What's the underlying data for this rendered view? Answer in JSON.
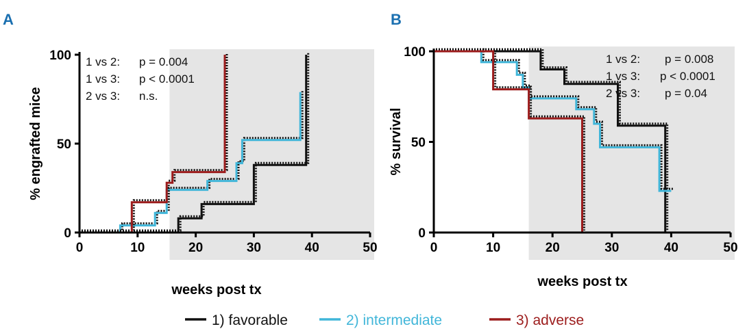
{
  "legend": [
    {
      "label": "1) favorable",
      "color": "#111111"
    },
    {
      "label": "2) intermediate",
      "color": "#41b6d9"
    },
    {
      "label": "3) adverse",
      "color": "#9c1c1c"
    }
  ],
  "chart_data": [
    {
      "panel": "A",
      "type": "line",
      "step": true,
      "ylabel": "% engrafted mice",
      "xlabel": "weeks post tx",
      "xlim": [
        0,
        50
      ],
      "ylim": [
        0,
        100
      ],
      "xticks": [
        0,
        10,
        20,
        30,
        40,
        50
      ],
      "yticks": [
        0,
        50,
        100
      ],
      "shaded_x_range": [
        15.5,
        50
      ],
      "annotations": [
        {
          "label": "1 vs 2:",
          "value": "p = 0.004"
        },
        {
          "label": "1 vs 3:",
          "value": "p < 0.0001"
        },
        {
          "label": "2 vs 3:",
          "value": "n.s."
        }
      ],
      "series": [
        {
          "name": "1) favorable",
          "x": [
            0,
            17,
            17,
            21,
            21,
            30,
            30,
            39,
            39
          ],
          "y": [
            0,
            0,
            8,
            8,
            16,
            16,
            38,
            38,
            100
          ]
        },
        {
          "name": "2) intermediate",
          "x": [
            0,
            7,
            7,
            13,
            13,
            15,
            15,
            22,
            22,
            27,
            27,
            28,
            28,
            38,
            38
          ],
          "y": [
            0,
            0,
            4,
            4,
            11,
            11,
            24,
            24,
            29,
            29,
            39,
            39,
            52,
            52,
            79
          ]
        },
        {
          "name": "3) adverse",
          "x": [
            0,
            9,
            9,
            15,
            15,
            16,
            16,
            25,
            25
          ],
          "y": [
            0,
            0,
            17,
            17,
            28,
            28,
            34,
            34,
            100
          ]
        }
      ]
    },
    {
      "panel": "B",
      "type": "line",
      "step": true,
      "ylabel": "% survival",
      "xlabel": "weeks post tx",
      "xlim": [
        0,
        50
      ],
      "ylim": [
        0,
        100
      ],
      "xticks": [
        0,
        10,
        20,
        30,
        40,
        50
      ],
      "yticks": [
        0,
        50,
        100
      ],
      "shaded_x_range": [
        16,
        50
      ],
      "annotations": [
        {
          "label": "1 vs 2:",
          "value": "p = 0.008"
        },
        {
          "label": "1 vs 3:",
          "value": "p < 0.0001"
        },
        {
          "label": "2 vs 3:",
          "value": "p = 0.04"
        }
      ],
      "series": [
        {
          "name": "1) favorable",
          "x": [
            0,
            18,
            18,
            22,
            22,
            31,
            31,
            39,
            39
          ],
          "y": [
            100,
            100,
            90,
            90,
            82,
            82,
            59,
            59,
            0
          ]
        },
        {
          "name": "2) intermediate",
          "x": [
            0,
            8,
            8,
            14,
            14,
            15,
            15,
            16,
            16,
            24,
            24,
            27,
            27,
            28,
            28,
            38,
            38,
            40
          ],
          "y": [
            100,
            100,
            94,
            94,
            87,
            87,
            80,
            80,
            74,
            74,
            68,
            68,
            60,
            60,
            47,
            47,
            23,
            23
          ]
        },
        {
          "name": "3) adverse",
          "x": [
            0,
            10,
            10,
            16,
            16,
            25,
            25
          ],
          "y": [
            100,
            100,
            79,
            79,
            63,
            63,
            0
          ]
        }
      ]
    }
  ]
}
